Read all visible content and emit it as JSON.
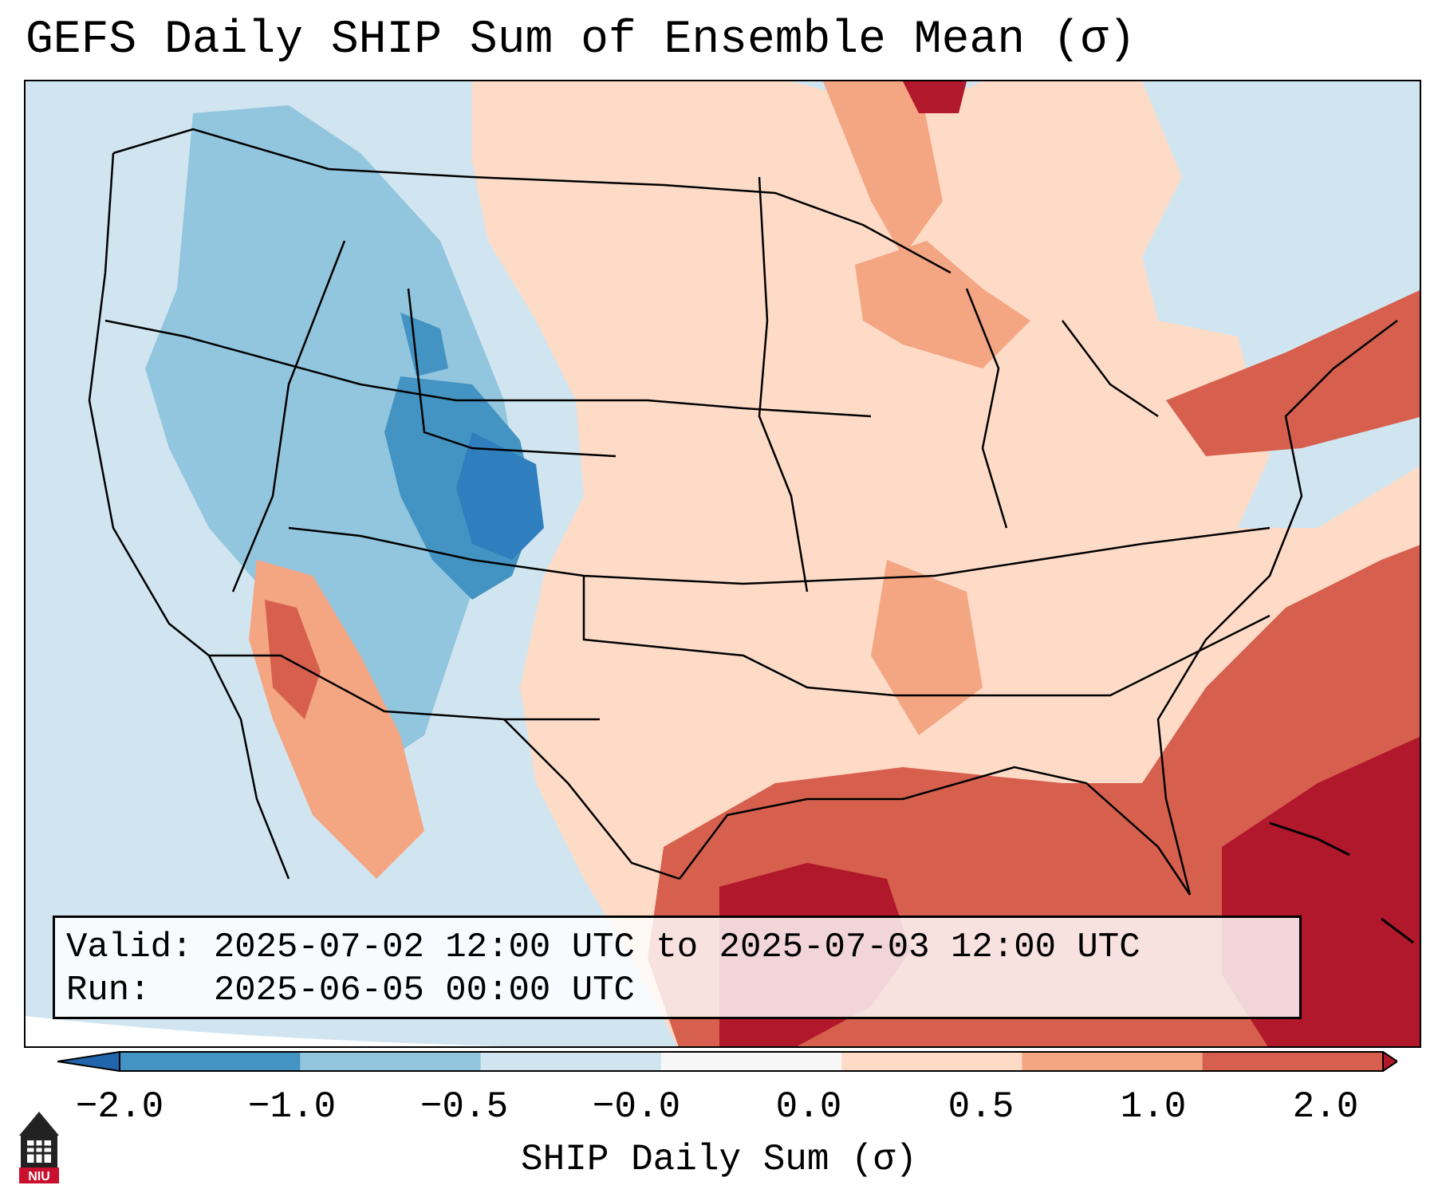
{
  "title": "GEFS Daily SHIP Sum of Ensemble Mean (σ)",
  "info": {
    "valid_line": "Valid: 2025-07-02 12:00 UTC to 2025-07-03 12:00 UTC",
    "run_line": "Run:   2025-06-05 00:00 UTC"
  },
  "colorbar": {
    "label": "SHIP Daily Sum (σ)",
    "ticks": [
      "−2.0",
      "−1.0",
      "−0.5",
      "−0.0",
      "0.0",
      "0.5",
      "1.0",
      "2.0"
    ],
    "bins": [
      {
        "color": "#4393c3"
      },
      {
        "color": "#92c5de"
      },
      {
        "color": "#d1e5f0"
      },
      {
        "color": "#f7f7f7"
      },
      {
        "color": "#fddbc7"
      },
      {
        "color": "#f4a582"
      },
      {
        "color": "#d6604d"
      }
    ],
    "under_color": "#2166ac",
    "over_color": "#b2182b"
  },
  "logo": {
    "text": "NIU",
    "icon": "university-tower-icon"
  },
  "colors": {
    "strong_negative": "#4393c3",
    "negative": "#92c5de",
    "weak_negative": "#d1e5f0",
    "weak_positive": "#fddbc7",
    "positive": "#f4a582",
    "strong_positive": "#d6604d",
    "extreme_positive": "#b2182b"
  }
}
